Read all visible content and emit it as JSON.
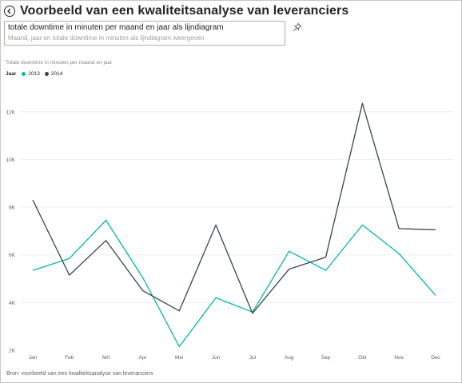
{
  "header": {
    "title": "Voorbeeld van een kwaliteitsanalyse van leveranciers"
  },
  "qa": {
    "question": "totale downtime in minuten per maand en jaar als lijndiagram",
    "restatement": "Maand, jaar en totale downtime in minuten als lijndiagram weergeven"
  },
  "footer": {
    "source": "Bron: voorbeeld van een kwaliteitsanalyse van leveranciers"
  },
  "chart_data": {
    "type": "line",
    "title": "Totale downtime in minuten per maand en jaar",
    "legend_title": "Jaar",
    "legend_position": "top-left",
    "grid": true,
    "categories": [
      "Jan",
      "Feb",
      "Mrt",
      "Apr",
      "Mei",
      "Jun",
      "Jul",
      "Aug",
      "Sep",
      "Okt",
      "Nov",
      "Dec"
    ],
    "y_ticks": [
      2000,
      4000,
      6000,
      8000,
      10000,
      12000
    ],
    "y_tick_labels": [
      "2K",
      "4K",
      "6K",
      "8K",
      "10K",
      "12K"
    ],
    "ylim": [
      2000,
      13300
    ],
    "series": [
      {
        "name": "2013",
        "color": "#01b8aa",
        "values": [
          5350,
          5850,
          7450,
          5050,
          2150,
          4200,
          3600,
          6150,
          5350,
          7250,
          6050,
          4300
        ]
      },
      {
        "name": "2014",
        "color": "#374649",
        "values": [
          8300,
          5150,
          6600,
          4500,
          3650,
          7250,
          3550,
          5400,
          5900,
          12350,
          7100,
          7050
        ]
      }
    ]
  }
}
